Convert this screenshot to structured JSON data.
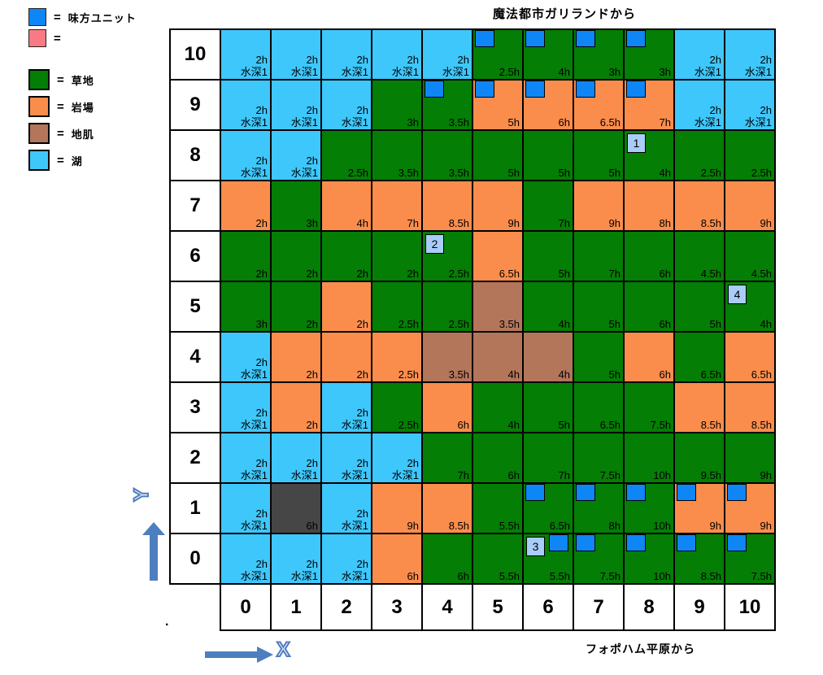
{
  "title_north": "魔法都市ガリランドから",
  "label_south": "フォポハム平原から",
  "dot": ".",
  "axis": {
    "y_glyph": "Y",
    "x_glyph": "X",
    "color": "#4D7EBF"
  },
  "legend": {
    "equals": "=",
    "items": [
      {
        "key": "ally-unit",
        "color": "#0E86F6",
        "label": "味方ユニット"
      },
      {
        "key": "enemy-unit",
        "color": "#F97A85",
        "label": ""
      },
      {
        "key": "grass",
        "color": "#047E04",
        "label": "草地"
      },
      {
        "key": "rock",
        "color": "#FB8D4C",
        "label": "岩場"
      },
      {
        "key": "bare",
        "color": "#B3765B",
        "label": "地肌"
      },
      {
        "key": "lake",
        "color": "#3EC7FB",
        "label": "湖"
      }
    ]
  },
  "map": {
    "terrain_colors": {
      "grass": "#047E04",
      "rock": "#FB8D4C",
      "bare": "#B3765B",
      "lake": "#3EC7FB",
      "dark": "#464646"
    },
    "unit_color": "#0E86F6",
    "badge_color": "#A9CDF8",
    "col_headers": [
      "0",
      "1",
      "2",
      "3",
      "4",
      "5",
      "6",
      "7",
      "8",
      "9",
      "10"
    ],
    "rows": [
      {
        "y": "10",
        "cells": [
          {
            "terrain": "lake",
            "text": [
              "2h",
              "水深1"
            ]
          },
          {
            "terrain": "lake",
            "text": [
              "2h",
              "水深1"
            ]
          },
          {
            "terrain": "lake",
            "text": [
              "2h",
              "水深1"
            ]
          },
          {
            "terrain": "lake",
            "text": [
              "2h",
              "水深1"
            ]
          },
          {
            "terrain": "lake",
            "text": [
              "2h",
              "水深1"
            ]
          },
          {
            "terrain": "grass",
            "text": [
              "2.5h"
            ],
            "unit": true
          },
          {
            "terrain": "grass",
            "text": [
              "4h"
            ],
            "unit": true
          },
          {
            "terrain": "grass",
            "text": [
              "3h"
            ],
            "unit": true
          },
          {
            "terrain": "grass",
            "text": [
              "3h"
            ],
            "unit": true
          },
          {
            "terrain": "lake",
            "text": [
              "2h",
              "水深1"
            ]
          },
          {
            "terrain": "lake",
            "text": [
              "2h",
              "水深1"
            ]
          }
        ]
      },
      {
        "y": "9",
        "cells": [
          {
            "terrain": "lake",
            "text": [
              "2h",
              "水深1"
            ]
          },
          {
            "terrain": "lake",
            "text": [
              "2h",
              "水深1"
            ]
          },
          {
            "terrain": "lake",
            "text": [
              "2h",
              "水深1"
            ]
          },
          {
            "terrain": "grass",
            "text": [
              "3h"
            ]
          },
          {
            "terrain": "grass",
            "text": [
              "3.5h"
            ],
            "unit": true
          },
          {
            "terrain": "rock",
            "text": [
              "5h"
            ],
            "unit": true
          },
          {
            "terrain": "rock",
            "text": [
              "6h"
            ],
            "unit": true
          },
          {
            "terrain": "rock",
            "text": [
              "6.5h"
            ],
            "unit": true
          },
          {
            "terrain": "rock",
            "text": [
              "7h"
            ],
            "unit": true
          },
          {
            "terrain": "lake",
            "text": [
              "2h",
              "水深1"
            ]
          },
          {
            "terrain": "lake",
            "text": [
              "2h",
              "水深1"
            ]
          }
        ]
      },
      {
        "y": "8",
        "cells": [
          {
            "terrain": "lake",
            "text": [
              "2h",
              "水深1"
            ]
          },
          {
            "terrain": "lake",
            "text": [
              "2h",
              "水深1"
            ]
          },
          {
            "terrain": "grass",
            "text": [
              "2.5h"
            ]
          },
          {
            "terrain": "grass",
            "text": [
              "3.5h"
            ]
          },
          {
            "terrain": "grass",
            "text": [
              "3.5h"
            ]
          },
          {
            "terrain": "grass",
            "text": [
              "5h"
            ]
          },
          {
            "terrain": "grass",
            "text": [
              "5h"
            ]
          },
          {
            "terrain": "grass",
            "text": [
              "5h"
            ]
          },
          {
            "terrain": "grass",
            "text": [
              "4h"
            ],
            "badge": "1"
          },
          {
            "terrain": "grass",
            "text": [
              "2.5h"
            ]
          },
          {
            "terrain": "grass",
            "text": [
              "2.5h"
            ]
          }
        ]
      },
      {
        "y": "7",
        "cells": [
          {
            "terrain": "rock",
            "text": [
              "2h"
            ]
          },
          {
            "terrain": "grass",
            "text": [
              "3h"
            ]
          },
          {
            "terrain": "rock",
            "text": [
              "4h"
            ]
          },
          {
            "terrain": "rock",
            "text": [
              "7h"
            ]
          },
          {
            "terrain": "rock",
            "text": [
              "8.5h"
            ]
          },
          {
            "terrain": "rock",
            "text": [
              "9h"
            ]
          },
          {
            "terrain": "grass",
            "text": [
              "7h"
            ]
          },
          {
            "terrain": "rock",
            "text": [
              "9h"
            ]
          },
          {
            "terrain": "rock",
            "text": [
              "8h"
            ]
          },
          {
            "terrain": "rock",
            "text": [
              "8.5h"
            ]
          },
          {
            "terrain": "rock",
            "text": [
              "9h"
            ]
          }
        ]
      },
      {
        "y": "6",
        "cells": [
          {
            "terrain": "grass",
            "text": [
              "2h"
            ]
          },
          {
            "terrain": "grass",
            "text": [
              "2h"
            ]
          },
          {
            "terrain": "grass",
            "text": [
              "2h"
            ]
          },
          {
            "terrain": "grass",
            "text": [
              "2h"
            ]
          },
          {
            "terrain": "grass",
            "text": [
              "2.5h"
            ],
            "badge": "2"
          },
          {
            "terrain": "rock",
            "text": [
              "6.5h"
            ]
          },
          {
            "terrain": "grass",
            "text": [
              "5h"
            ]
          },
          {
            "terrain": "grass",
            "text": [
              "7h"
            ]
          },
          {
            "terrain": "grass",
            "text": [
              "6h"
            ]
          },
          {
            "terrain": "grass",
            "text": [
              "4.5h"
            ]
          },
          {
            "terrain": "grass",
            "text": [
              "4.5h"
            ]
          }
        ]
      },
      {
        "y": "5",
        "cells": [
          {
            "terrain": "grass",
            "text": [
              "3h"
            ]
          },
          {
            "terrain": "grass",
            "text": [
              "2h"
            ]
          },
          {
            "terrain": "rock",
            "text": [
              "2h"
            ]
          },
          {
            "terrain": "grass",
            "text": [
              "2.5h"
            ]
          },
          {
            "terrain": "grass",
            "text": [
              "2.5h"
            ]
          },
          {
            "terrain": "bare",
            "text": [
              "3.5h"
            ]
          },
          {
            "terrain": "grass",
            "text": [
              "4h"
            ]
          },
          {
            "terrain": "grass",
            "text": [
              "5h"
            ]
          },
          {
            "terrain": "grass",
            "text": [
              "6h"
            ]
          },
          {
            "terrain": "grass",
            "text": [
              "5h"
            ]
          },
          {
            "terrain": "grass",
            "text": [
              "4h"
            ],
            "badge": "4"
          }
        ]
      },
      {
        "y": "4",
        "cells": [
          {
            "terrain": "lake",
            "text": [
              "2h",
              "水深1"
            ]
          },
          {
            "terrain": "rock",
            "text": [
              "2h"
            ]
          },
          {
            "terrain": "rock",
            "text": [
              "2h"
            ]
          },
          {
            "terrain": "rock",
            "text": [
              "2.5h"
            ]
          },
          {
            "terrain": "bare",
            "text": [
              "3.5h"
            ]
          },
          {
            "terrain": "bare",
            "text": [
              "4h"
            ]
          },
          {
            "terrain": "bare",
            "text": [
              "4h"
            ]
          },
          {
            "terrain": "grass",
            "text": [
              "5h"
            ]
          },
          {
            "terrain": "rock",
            "text": [
              "6h"
            ]
          },
          {
            "terrain": "grass",
            "text": [
              "6.5h"
            ]
          },
          {
            "terrain": "rock",
            "text": [
              "6.5h"
            ]
          }
        ]
      },
      {
        "y": "3",
        "cells": [
          {
            "terrain": "lake",
            "text": [
              "2h",
              "水深1"
            ]
          },
          {
            "terrain": "rock",
            "text": [
              "2h"
            ]
          },
          {
            "terrain": "lake",
            "text": [
              "2h",
              "水深1"
            ]
          },
          {
            "terrain": "grass",
            "text": [
              "2.5h"
            ]
          },
          {
            "terrain": "rock",
            "text": [
              "6h"
            ]
          },
          {
            "terrain": "grass",
            "text": [
              "4h"
            ]
          },
          {
            "terrain": "grass",
            "text": [
              "5h"
            ]
          },
          {
            "terrain": "grass",
            "text": [
              "6.5h"
            ]
          },
          {
            "terrain": "grass",
            "text": [
              "7.5h"
            ]
          },
          {
            "terrain": "rock",
            "text": [
              "8.5h"
            ]
          },
          {
            "terrain": "rock",
            "text": [
              "8.5h"
            ]
          }
        ]
      },
      {
        "y": "2",
        "cells": [
          {
            "terrain": "lake",
            "text": [
              "2h",
              "水深1"
            ]
          },
          {
            "terrain": "lake",
            "text": [
              "2h",
              "水深1"
            ]
          },
          {
            "terrain": "lake",
            "text": [
              "2h",
              "水深1"
            ]
          },
          {
            "terrain": "lake",
            "text": [
              "2h",
              "水深1"
            ]
          },
          {
            "terrain": "grass",
            "text": [
              "7h"
            ]
          },
          {
            "terrain": "grass",
            "text": [
              "6h"
            ]
          },
          {
            "terrain": "grass",
            "text": [
              "7h"
            ]
          },
          {
            "terrain": "grass",
            "text": [
              "7.5h"
            ]
          },
          {
            "terrain": "grass",
            "text": [
              "10h"
            ]
          },
          {
            "terrain": "grass",
            "text": [
              "9.5h"
            ]
          },
          {
            "terrain": "grass",
            "text": [
              "9h"
            ]
          }
        ]
      },
      {
        "y": "1",
        "cells": [
          {
            "terrain": "lake",
            "text": [
              "2h",
              "水深1"
            ]
          },
          {
            "terrain": "dark",
            "text": [
              "6h"
            ]
          },
          {
            "terrain": "lake",
            "text": [
              "2h",
              "水深1"
            ]
          },
          {
            "terrain": "rock",
            "text": [
              "9h"
            ]
          },
          {
            "terrain": "rock",
            "text": [
              "8.5h"
            ]
          },
          {
            "terrain": "grass",
            "text": [
              "5.5h"
            ]
          },
          {
            "terrain": "grass",
            "text": [
              "6.5h"
            ],
            "unit": true
          },
          {
            "terrain": "grass",
            "text": [
              "8h"
            ],
            "unit": true
          },
          {
            "terrain": "grass",
            "text": [
              "10h"
            ],
            "unit": true
          },
          {
            "terrain": "rock",
            "text": [
              "9h"
            ],
            "unit": true
          },
          {
            "terrain": "rock",
            "text": [
              "9h"
            ],
            "unit": true
          }
        ]
      },
      {
        "y": "0",
        "cells": [
          {
            "terrain": "lake",
            "text": [
              "2h",
              "水深1"
            ]
          },
          {
            "terrain": "lake",
            "text": [
              "2h",
              "水深1"
            ]
          },
          {
            "terrain": "lake",
            "text": [
              "2h",
              "水深1"
            ]
          },
          {
            "terrain": "rock",
            "text": [
              "6h"
            ]
          },
          {
            "terrain": "grass",
            "text": [
              "6h"
            ]
          },
          {
            "terrain": "grass",
            "text": [
              "5.5h"
            ]
          },
          {
            "terrain": "grass",
            "text": [
              "5.5h"
            ],
            "badge": "3",
            "unit": true
          },
          {
            "terrain": "grass",
            "text": [
              "7.5h"
            ],
            "unit": true
          },
          {
            "terrain": "grass",
            "text": [
              "10h"
            ],
            "unit": true
          },
          {
            "terrain": "grass",
            "text": [
              "8.5h"
            ],
            "unit": true
          },
          {
            "terrain": "grass",
            "text": [
              "7.5h"
            ],
            "unit": true
          }
        ]
      }
    ]
  }
}
